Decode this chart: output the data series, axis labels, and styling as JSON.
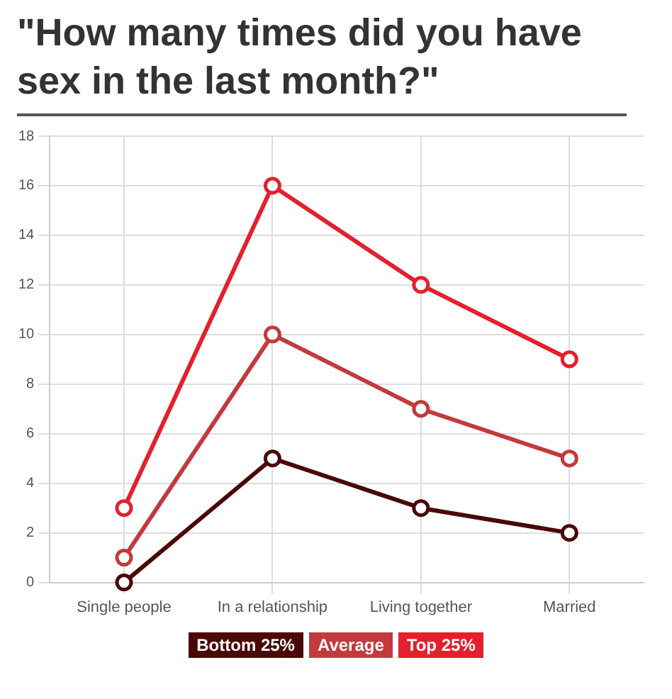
{
  "chart_data": {
    "type": "line",
    "title": "\"How many times did you have sex in the last month?\"",
    "categories": [
      "Single people",
      "In a relationship",
      "Living together",
      "Married"
    ],
    "series": [
      {
        "name": "Bottom 25%",
        "color": "#4a0808",
        "values": [
          0,
          5,
          3,
          2
        ]
      },
      {
        "name": "Average",
        "color": "#c23a3c",
        "values": [
          1,
          10,
          7,
          5
        ]
      },
      {
        "name": "Top 25%",
        "color": "#e3202c",
        "values": [
          3,
          16,
          12,
          9
        ]
      }
    ],
    "ylim": [
      0,
      18
    ],
    "yticks": [
      0,
      2,
      4,
      6,
      8,
      10,
      12,
      14,
      16,
      18
    ],
    "grid": true,
    "legend": "bottom",
    "marker": "circle",
    "line_style": "solid"
  }
}
